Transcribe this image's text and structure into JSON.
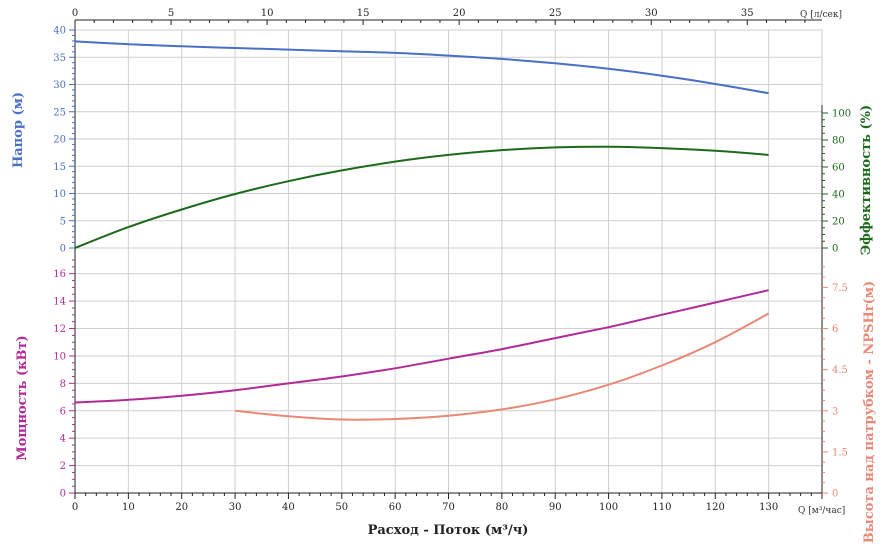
{
  "colors": {
    "head": "#4a6fc6",
    "efficiency": "#1d6a1d",
    "power": "#b22a96",
    "npsh": "#e98876",
    "grid": "#cfcfcf",
    "axis": "#222222"
  },
  "labels": {
    "x_bottom_title": "Расход - Поток (м³/ч)",
    "x_bottom_unit": "Q [м³/час]",
    "x_top_unit": "Q [л/сек]",
    "head_title": "Напор (м)",
    "efficiency_title": "Эффективность (%)",
    "power_title": "Мощность (кВт)",
    "npsh_title": "Высота над патрубком - NPSHr(м)"
  },
  "chart_data": [
    {
      "type": "line",
      "name": "head-panel",
      "x_axis": {
        "label": "Q [м³/час]",
        "range": [
          0,
          140
        ],
        "ticks": [
          0,
          10,
          20,
          30,
          40,
          50,
          60,
          70,
          80,
          90,
          100,
          110,
          120,
          130
        ]
      },
      "x_top_axis": {
        "label": "Q [л/сек]",
        "range": [
          0,
          38.89
        ],
        "ticks": [
          0,
          5,
          10,
          15,
          20,
          25,
          30,
          35
        ]
      },
      "y_left": {
        "label": "Напор (м)",
        "range": [
          0,
          40
        ],
        "ticks": [
          0,
          5,
          10,
          15,
          20,
          25,
          30,
          35,
          40
        ]
      },
      "y_right": {
        "label": "Эффективность (%)",
        "range": [
          0,
          100
        ],
        "ticks": [
          0,
          20,
          40,
          60,
          80,
          100
        ]
      },
      "series": [
        {
          "key": "head",
          "axis": "left",
          "x": [
            0,
            10,
            20,
            30,
            40,
            50,
            60,
            70,
            80,
            90,
            100,
            110,
            120,
            130
          ],
          "y": [
            37.9,
            37.4,
            37.0,
            36.7,
            36.4,
            36.1,
            35.8,
            35.3,
            34.7,
            33.9,
            32.9,
            31.6,
            30.1,
            28.4
          ]
        },
        {
          "key": "efficiency",
          "axis": "right",
          "x": [
            0,
            10,
            20,
            30,
            40,
            50,
            60,
            70,
            80,
            90,
            100,
            110,
            120,
            130
          ],
          "y": [
            0,
            15.5,
            28.5,
            40,
            49.5,
            57.5,
            64,
            69,
            72.5,
            74.5,
            75,
            74,
            72,
            69
          ]
        }
      ]
    },
    {
      "type": "line",
      "name": "power-panel",
      "x_axis": {
        "label": "Расход - Поток (м³/ч)",
        "range": [
          0,
          140
        ],
        "ticks": [
          0,
          10,
          20,
          30,
          40,
          50,
          60,
          70,
          80,
          90,
          100,
          110,
          120,
          130
        ]
      },
      "y_left": {
        "label": "Мощность (кВт)",
        "range": [
          0,
          17
        ],
        "ticks": [
          0,
          2,
          4,
          6,
          8,
          10,
          12,
          14,
          16
        ]
      },
      "y_right": {
        "label": "Высота над патрубком - NPSHr(м)",
        "range": [
          0,
          8.5
        ],
        "ticks": [
          "0",
          "1.5",
          "3",
          "4.5",
          "6",
          "7.5"
        ]
      },
      "series": [
        {
          "key": "power",
          "axis": "left",
          "x": [
            0,
            10,
            20,
            30,
            40,
            50,
            60,
            70,
            80,
            90,
            100,
            110,
            120,
            130
          ],
          "y": [
            6.6,
            6.8,
            7.1,
            7.5,
            8.0,
            8.5,
            9.1,
            9.8,
            10.5,
            11.3,
            12.1,
            13.0,
            13.9,
            14.8
          ]
        },
        {
          "key": "npsh",
          "axis": "right",
          "x": [
            30,
            40,
            50,
            60,
            70,
            80,
            90,
            100,
            110,
            120,
            130
          ],
          "y": [
            3.0,
            2.8,
            2.68,
            2.7,
            2.82,
            3.05,
            3.42,
            3.95,
            4.65,
            5.5,
            6.55
          ]
        }
      ]
    }
  ]
}
